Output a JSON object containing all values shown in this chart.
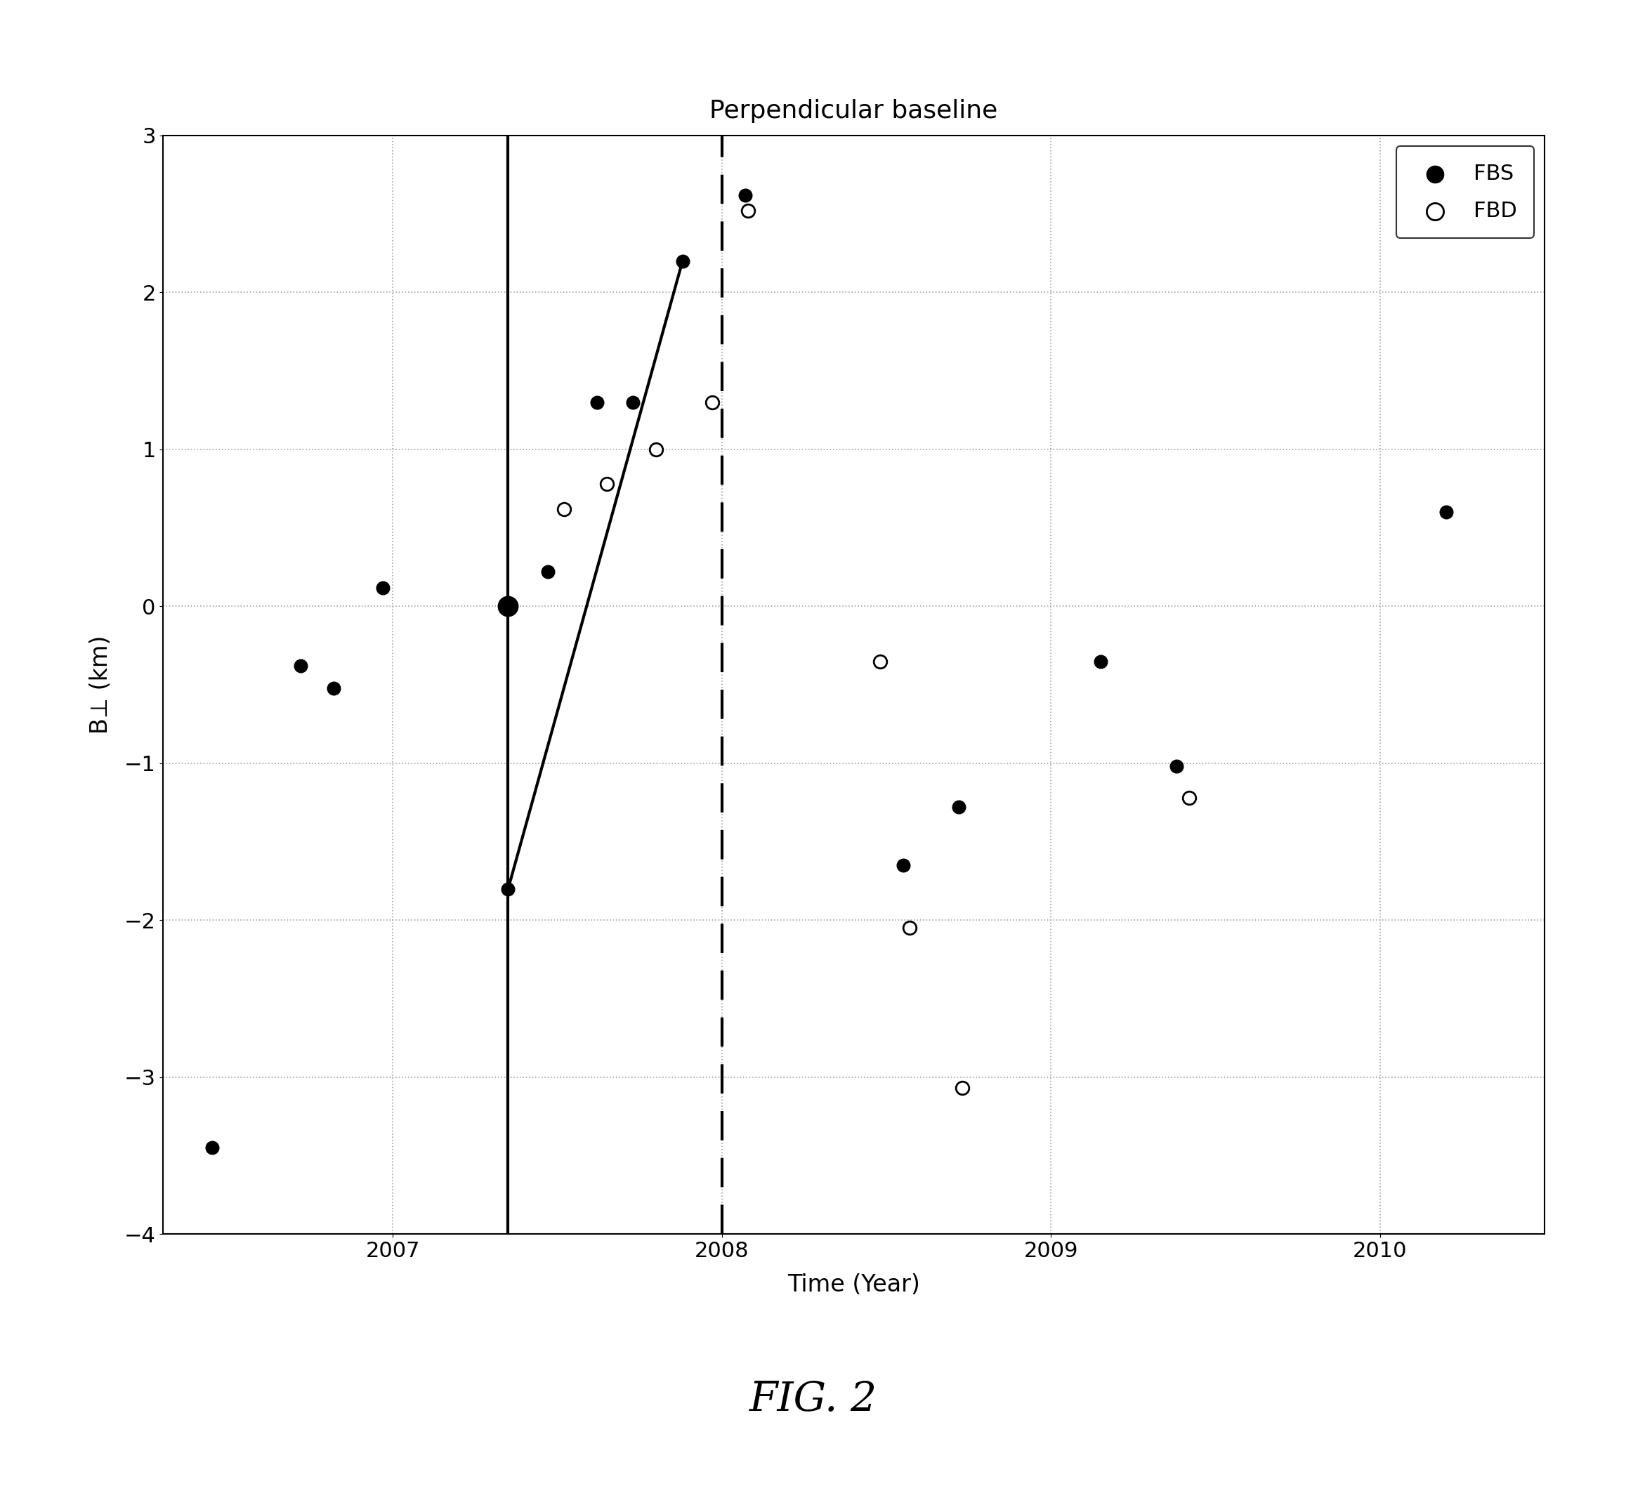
{
  "title": "Perpendicular baseline",
  "xlabel": "Time (Year)",
  "ylabel": "B⊥ (km)",
  "fig_label": "FIG. 2",
  "xlim": [
    2006.3,
    2010.5
  ],
  "ylim": [
    -4,
    3
  ],
  "yticks": [
    -4,
    -3,
    -2,
    -1,
    0,
    1,
    2,
    3
  ],
  "xticks": [
    2007,
    2008,
    2009,
    2010
  ],
  "solid_vline": 2007.35,
  "dashed_vline": 2008.0,
  "fbs_points": [
    [
      2006.45,
      -3.45
    ],
    [
      2006.72,
      -0.38
    ],
    [
      2006.82,
      -0.52
    ],
    [
      2006.97,
      0.12
    ],
    [
      2007.47,
      0.22
    ],
    [
      2007.62,
      1.3
    ],
    [
      2007.73,
      1.3
    ],
    [
      2007.88,
      2.2
    ],
    [
      2008.07,
      2.62
    ],
    [
      2008.55,
      -1.65
    ],
    [
      2008.72,
      -1.28
    ],
    [
      2009.15,
      -0.35
    ],
    [
      2009.38,
      -1.02
    ],
    [
      2010.2,
      0.6
    ]
  ],
  "fbd_points": [
    [
      2007.52,
      0.62
    ],
    [
      2007.65,
      0.78
    ],
    [
      2007.8,
      1.0
    ],
    [
      2007.97,
      1.3
    ],
    [
      2008.08,
      2.52
    ],
    [
      2008.48,
      -0.35
    ],
    [
      2008.57,
      -2.05
    ],
    [
      2008.73,
      -3.07
    ],
    [
      2009.42,
      -1.22
    ]
  ],
  "line_x": [
    2007.35,
    2007.88
  ],
  "line_y": [
    -1.8,
    2.2
  ],
  "fbs_large_point_x": 2007.35,
  "fbs_large_point_y": 0.0,
  "fbs_lower_point_x": 2007.35,
  "fbs_lower_point_y": -1.8,
  "background_color": "#ffffff",
  "dot_color_filled": "#000000",
  "grid_color": "#999999",
  "title_fontsize": 26,
  "label_fontsize": 24,
  "tick_fontsize": 22,
  "legend_fontsize": 22,
  "fig_label_fontsize": 42,
  "marker_size": 180,
  "large_marker_size": 420,
  "linewidth": 3.0
}
